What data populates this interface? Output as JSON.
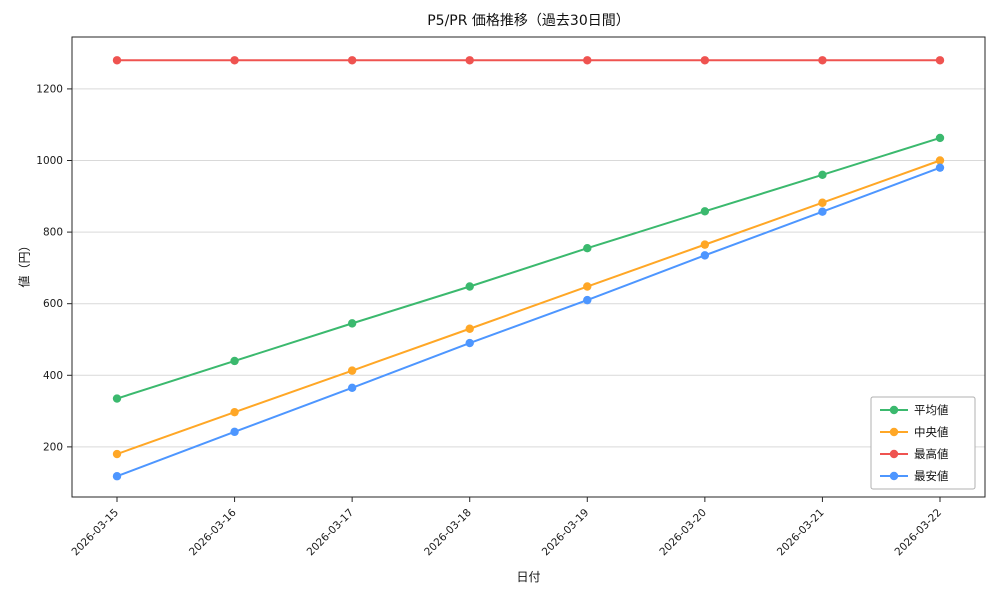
{
  "chart_data": {
    "type": "line",
    "title": "P5/PR 価格推移（過去30日間）",
    "xlabel": "日付",
    "ylabel": "値（円）",
    "categories": [
      "2026-03-15",
      "2026-03-16",
      "2026-03-17",
      "2026-03-18",
      "2026-03-19",
      "2026-03-20",
      "2026-03-21",
      "2026-03-22"
    ],
    "series": [
      {
        "name": "平均値",
        "color": "#3bb96e",
        "values": [
          335,
          440,
          545,
          648,
          755,
          858,
          960,
          1063
        ]
      },
      {
        "name": "中央値",
        "color": "#ffa726",
        "values": [
          180,
          297,
          413,
          530,
          648,
          765,
          882,
          1000
        ]
      },
      {
        "name": "最高値",
        "color": "#ef5350",
        "values": [
          1280,
          1280,
          1280,
          1280,
          1280,
          1280,
          1280,
          1280
        ]
      },
      {
        "name": "最安値",
        "color": "#4d96ff",
        "values": [
          118,
          242,
          365,
          490,
          610,
          735,
          857,
          980
        ]
      }
    ],
    "ylim": [
      60,
      1345
    ],
    "yticks": [
      200,
      400,
      600,
      800,
      1000,
      1200
    ],
    "grid": true,
    "legend_position": "lower right",
    "colors": {
      "grid": "#d9d9d9",
      "axis": "#262626",
      "tick_text": "#1a1a1a",
      "legend_border": "#b0b0b0"
    }
  }
}
